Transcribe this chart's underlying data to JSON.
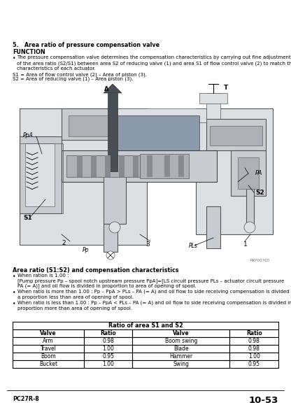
{
  "title_section": "5.   Area ratio of pressure compensation valve",
  "function_label": "FUNCTION",
  "bullet1_text": "The pressure compensation valve determines the compensation characteristics by carrying out fine adjustment of the area ratio (S2/S1) between area S2 of reducing valve (1) and area S1 of flow control valve (2) to match the characteristics of each actuator.",
  "s1_def": "S1 = Area of flow control valve (2) – Area of piston (3).",
  "s2_def": "S2 = Area of reducing valve (1) – Area piston (3).",
  "area_ratio_title": "Area ratio (S1:S2) and compensation characteristics",
  "bullet2_line1": "When ration is 1.00 :",
  "bullet2_line2": "[Pump pressure Pp – spool notch upstream pressure PpA]=[LS circuit pressure PLs – actuator circuit pressure",
  "bullet2_line3": "PA (= A)] and oil flow is divided in proportion to area of opening of spool.",
  "bullet3_text": "When ratio is more than 1.00 : Pp – PpA > PLs – PA (= A) and oil flow to side receiving compensation is divided in a proportion less than area of opening of spool.",
  "bullet4_text": "When ratio is less than 1.00 : Pp – PpA < PLs – PA (= A) and oil flow to side receiving compensation is divided in a proportion more than area of opening of spool.",
  "table_header": "Ratio of area S1 and S2",
  "table_col_headers": [
    "Valve",
    "Ratio",
    "Valve",
    "Ratio"
  ],
  "table_rows": [
    [
      "Arm",
      "0.98",
      "Boom swing",
      "0.98"
    ],
    [
      "Travel",
      "1.00",
      "Blade",
      "0.98"
    ],
    [
      "Boom",
      "0.95",
      "Hammer",
      "1.00"
    ],
    [
      "Bucket",
      "1.00",
      "Swing",
      "0.95"
    ]
  ],
  "footer_left": "PC27R-8",
  "footer_right": "10-53",
  "bg_color": "#ffffff",
  "text_color": "#000000",
  "diag_fill": "#c8ccd0",
  "diag_dark": "#888a90",
  "diag_mid": "#adb0b5",
  "diag_light": "#dde0e3"
}
